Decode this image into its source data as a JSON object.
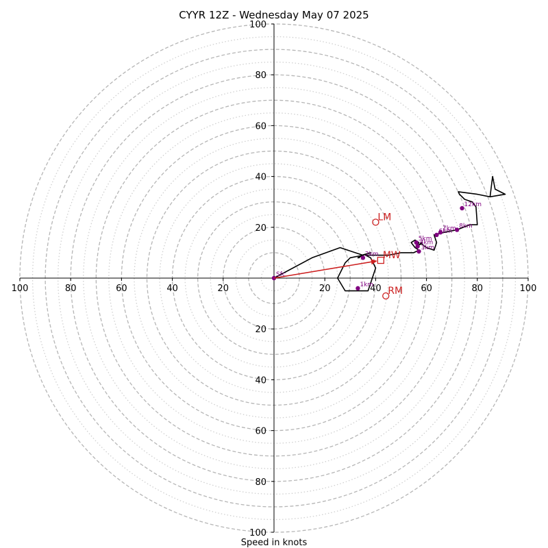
{
  "chart_data": {
    "type": "hodograph",
    "title": "CYYR 12Z - Wednesday May 07 2025",
    "xlabel": "Speed in knots",
    "xlim": [
      -100,
      100
    ],
    "ylim": [
      -100,
      100
    ],
    "ring_major_knots": [
      10,
      20,
      30,
      40,
      50,
      60,
      70,
      80,
      90,
      100
    ],
    "ring_minor_knots": [
      5,
      15,
      25,
      35,
      45,
      55,
      65,
      75,
      85,
      95
    ],
    "grid": true,
    "x_tick_labels": [
      "100",
      "80",
      "60",
      "40",
      "20",
      "20",
      "40",
      "60",
      "80",
      "100"
    ],
    "x_tick_values": [
      -100,
      -80,
      -60,
      -40,
      -20,
      20,
      40,
      60,
      80,
      100
    ],
    "y_tick_labels": [
      "100",
      "80",
      "60",
      "40",
      "20",
      "20",
      "40",
      "60",
      "80",
      "100"
    ],
    "y_tick_values": [
      100,
      80,
      60,
      40,
      20,
      -20,
      -40,
      -60,
      -80,
      -100
    ],
    "colors": {
      "trace": "#000000",
      "height_marker": "#800080",
      "storm_motion": "#cc1f1f",
      "ring_major": "#b5b5b5",
      "ring_minor": "#cfcfcf",
      "axis": "#000000"
    },
    "wind_trace": {
      "u": [
        0,
        15,
        26,
        35,
        33,
        33.5,
        34.5,
        38,
        35,
        30,
        28,
        25,
        28,
        37,
        40,
        38,
        36,
        38,
        45,
        50,
        55,
        57,
        55.5,
        54,
        55.5,
        57,
        56,
        58,
        57,
        58,
        60,
        63,
        64,
        63,
        67,
        72,
        77,
        80,
        79.5,
        78,
        75,
        73,
        72.5,
        80,
        85,
        91,
        87,
        86,
        85
      ],
      "v": [
        0,
        8,
        12,
        9,
        8,
        8,
        9,
        10,
        9,
        8,
        6,
        0,
        -5,
        -5,
        4,
        8,
        9,
        9,
        9,
        10,
        10,
        11,
        12,
        14,
        15,
        14,
        12,
        14,
        13,
        13.5,
        12,
        11,
        14,
        17,
        18,
        19,
        21,
        21,
        28,
        30,
        31,
        33,
        34,
        33,
        32,
        33,
        35,
        40,
        32
      ]
    },
    "height_markers": [
      {
        "label": "Sfc",
        "u": 0,
        "v": 0
      },
      {
        "label": "1km",
        "u": 33,
        "v": -4
      },
      {
        "label": "2km",
        "u": 35,
        "v": 8
      },
      {
        "label": "3km",
        "u": 57,
        "v": 10.5
      },
      {
        "label": "4km",
        "u": 56.5,
        "v": 12.5
      },
      {
        "label": "5km",
        "u": 56,
        "v": 14
      },
      {
        "label": "6km",
        "u": 64,
        "v": 17
      },
      {
        "label": "7km",
        "u": 65.5,
        "v": 18
      },
      {
        "label": "8km",
        "u": 72,
        "v": 19
      },
      {
        "label": "12km",
        "u": 74,
        "v": 27.5
      }
    ],
    "storm_motion": {
      "mean_wind": {
        "label": "MW",
        "u": 42,
        "v": 7
      },
      "left_mover": {
        "label": "LM",
        "u": 40,
        "v": 22
      },
      "right_mover": {
        "label": "RM",
        "u": 44,
        "v": -7
      }
    }
  }
}
